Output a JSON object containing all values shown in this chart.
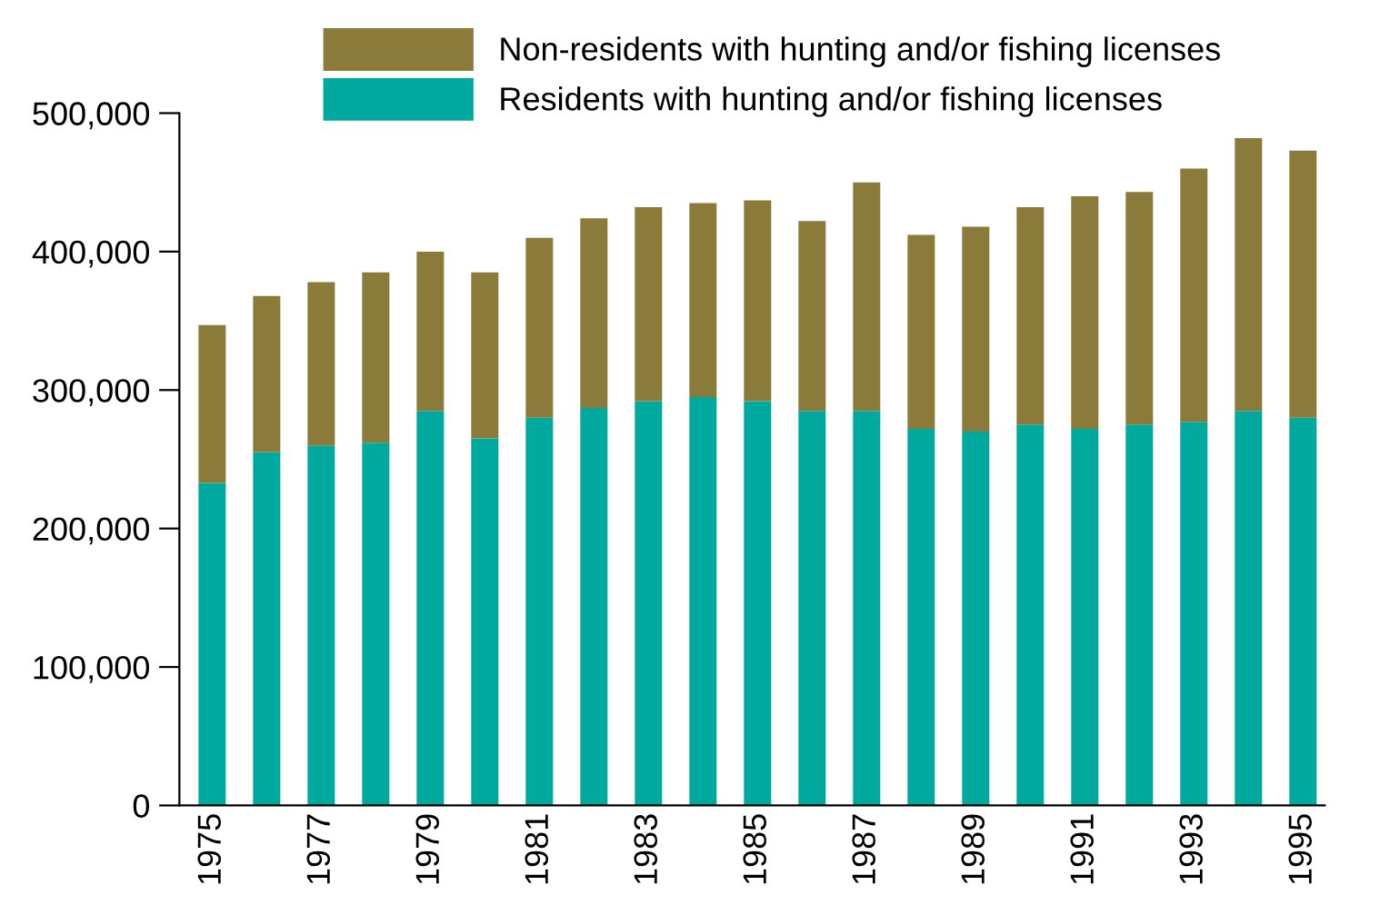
{
  "chart_data": {
    "type": "bar",
    "stacked": true,
    "legend": "top",
    "grid": false,
    "categories": [
      "1975",
      null,
      "1977",
      null,
      "1979",
      null,
      "1981",
      null,
      "1983",
      null,
      "1985",
      null,
      "1987",
      null,
      "1989",
      null,
      "1991",
      null,
      "1993",
      null,
      "1995"
    ],
    "series": [
      {
        "name": "Residents with hunting and/or fishing licenses",
        "color": "#00a99d",
        "values": [
          233000,
          255000,
          260000,
          262000,
          285000,
          265000,
          280000,
          287000,
          292000,
          295000,
          292000,
          285000,
          285000,
          272000,
          270000,
          275000,
          272000,
          275000,
          277000,
          285000,
          280000
        ]
      },
      {
        "name": "Non-residents with hunting and/or fishing licenses",
        "color": "#8b7b3b",
        "values": [
          114000,
          113000,
          118000,
          123000,
          115000,
          120000,
          130000,
          137000,
          140000,
          140000,
          145000,
          137000,
          165000,
          140000,
          148000,
          157000,
          168000,
          168000,
          183000,
          197000,
          193000
        ]
      }
    ],
    "ylim": [
      0,
      500000
    ],
    "yticks": [
      {
        "value": 0,
        "label": "0"
      },
      {
        "value": 100000,
        "label": "100,000"
      },
      {
        "value": 200000,
        "label": "200,000"
      },
      {
        "value": 300000,
        "label": "300,000"
      },
      {
        "value": 400000,
        "label": "400,000"
      },
      {
        "value": 500000,
        "label": "500,000"
      }
    ]
  }
}
